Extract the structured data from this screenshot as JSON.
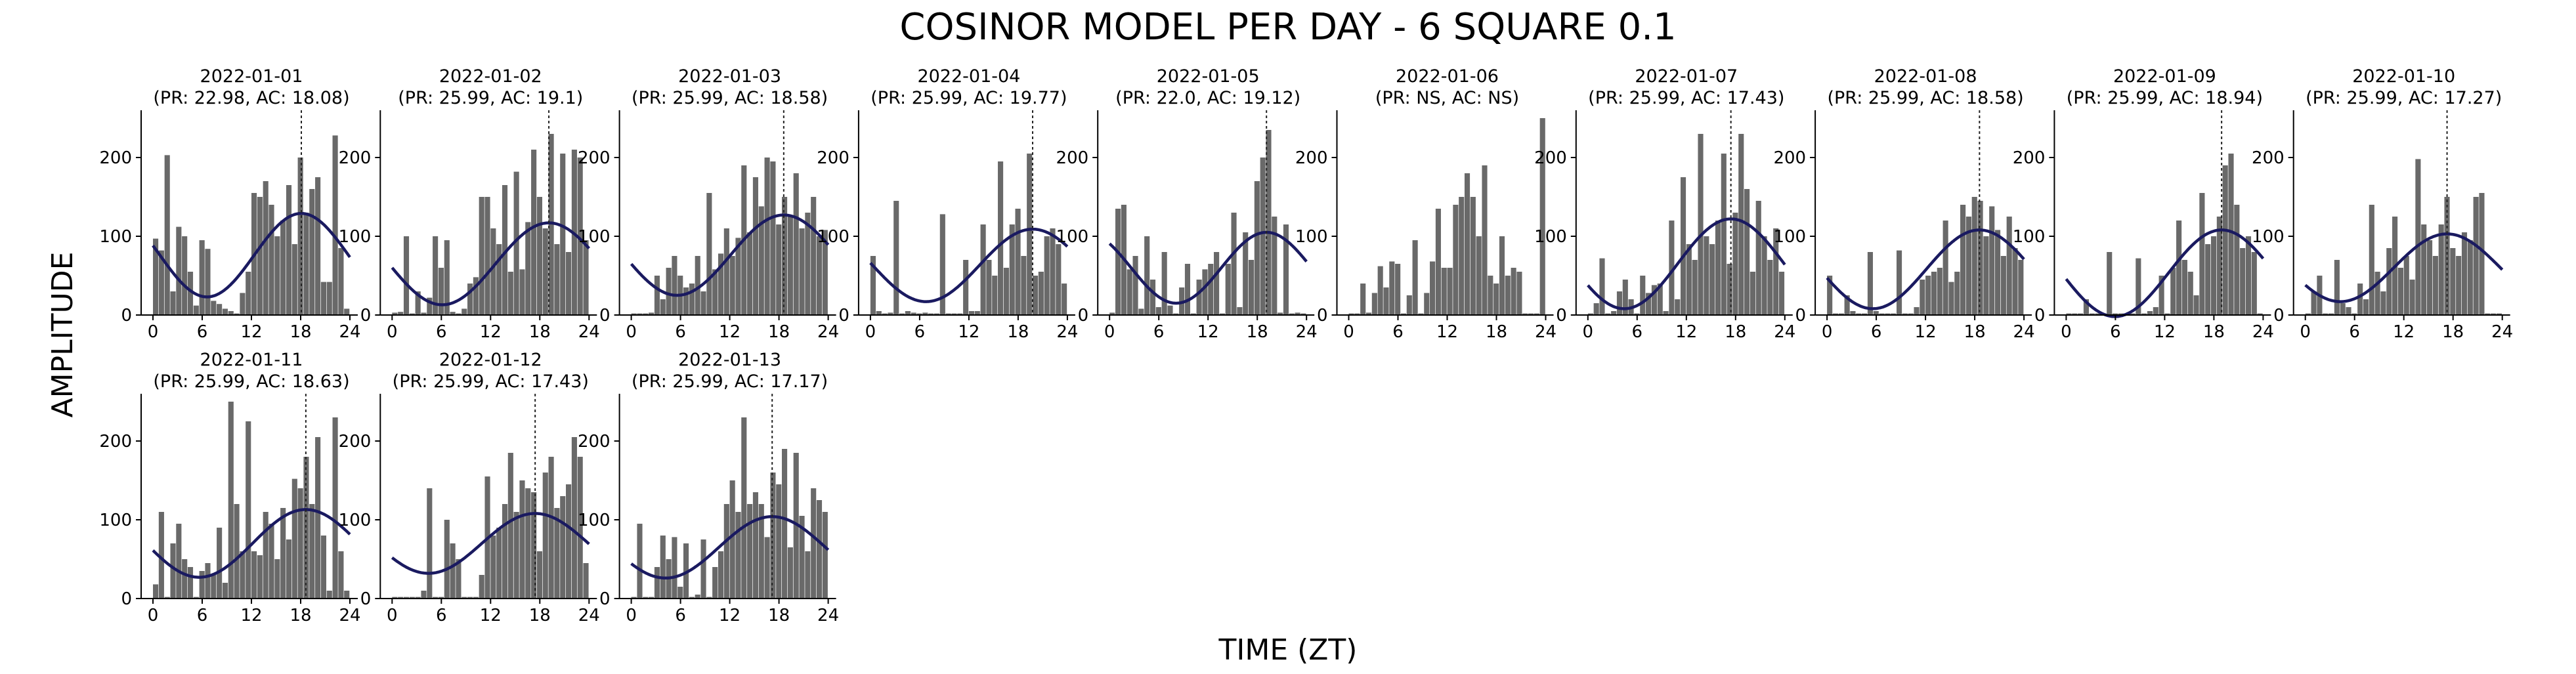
{
  "chart_data": {
    "type": "bar",
    "title": "COSINOR MODEL PER DAY - 6 SQUARE 0.1",
    "xlabel": "TIME (ZT)",
    "ylabel": "AMPLITUDE",
    "xlim": [
      0,
      24
    ],
    "ylim": [
      0,
      260
    ],
    "xticks": [
      0,
      6,
      12,
      18,
      24
    ],
    "yticks": [
      0,
      100,
      200
    ],
    "grid": false,
    "panels": [
      {
        "date": "2022-01-01",
        "subtitle": "(PR: 22.98, AC: 18.08)",
        "period": 22.98,
        "acrophase": 18.08,
        "mesor": 76,
        "amplitude": 53,
        "values": [
          97,
          82,
          203,
          30,
          112,
          100,
          55,
          12,
          95,
          84,
          18,
          14,
          8,
          5,
          2,
          28,
          55,
          155,
          150,
          170,
          140,
          100,
          120,
          165,
          90,
          200,
          130,
          160,
          175,
          42,
          42,
          228,
          85,
          8
        ]
      },
      {
        "date": "2022-01-02",
        "subtitle": "(PR: 25.99, AC: 19.1)",
        "period": 25.99,
        "acrophase": 19.1,
        "mesor": 65,
        "amplitude": 52,
        "values": [
          3,
          4,
          100,
          2,
          30,
          3,
          22,
          100,
          60,
          95,
          4,
          2,
          8,
          40,
          48,
          150,
          150,
          110,
          90,
          165,
          55,
          182,
          58,
          118,
          210,
          150,
          110,
          230,
          90,
          205,
          80,
          210,
          200,
          95
        ]
      },
      {
        "date": "2022-01-03",
        "subtitle": "(PR: 25.99, AC: 18.58)",
        "period": 25.99,
        "acrophase": 18.58,
        "mesor": 76,
        "amplitude": 51,
        "values": [
          2,
          2,
          2,
          3,
          50,
          20,
          60,
          75,
          50,
          35,
          40,
          75,
          30,
          155,
          58,
          78,
          110,
          75,
          98,
          190,
          105,
          175,
          138,
          200,
          195,
          115,
          150,
          125,
          180,
          110,
          130,
          150,
          100,
          108
        ]
      },
      {
        "date": "2022-01-04",
        "subtitle": "(PR: 25.99, AC: 19.77)",
        "period": 25.99,
        "acrophase": 19.77,
        "mesor": 63,
        "amplitude": 46,
        "values": [
          75,
          5,
          2,
          3,
          145,
          2,
          5,
          3,
          2,
          3,
          2,
          2,
          128,
          2,
          2,
          2,
          70,
          5,
          5,
          115,
          70,
          50,
          195,
          60,
          115,
          135,
          75,
          205,
          50,
          55,
          100,
          110,
          90,
          40
        ]
      },
      {
        "date": "2022-01-05",
        "subtitle": "(PR: 22.0, AC: 19.12)",
        "period": 22.0,
        "acrophase": 19.12,
        "mesor": 60,
        "amplitude": 45,
        "values": [
          3,
          135,
          140,
          58,
          75,
          8,
          100,
          45,
          10,
          80,
          12,
          2,
          35,
          65,
          2,
          45,
          58,
          65,
          80,
          2,
          65,
          130,
          10,
          105,
          70,
          170,
          200,
          235,
          125,
          3,
          115,
          2,
          3,
          2
        ]
      },
      {
        "date": "2022-01-06",
        "subtitle": "(PR: NS, AC: NS)",
        "period": null,
        "acrophase": null,
        "mesor": null,
        "amplitude": null,
        "values": [
          2,
          2,
          40,
          3,
          28,
          62,
          35,
          68,
          65,
          2,
          25,
          95,
          2,
          28,
          68,
          135,
          60,
          60,
          140,
          150,
          180,
          150,
          100,
          190,
          50,
          40,
          100,
          50,
          60,
          55,
          2,
          2,
          2,
          250
        ]
      },
      {
        "date": "2022-01-07",
        "subtitle": "(PR: 25.99, AC: 17.43)",
        "period": 25.99,
        "acrophase": 17.43,
        "mesor": 65,
        "amplitude": 57,
        "values": [
          2,
          15,
          72,
          2,
          5,
          30,
          45,
          20,
          2,
          50,
          28,
          38,
          40,
          5,
          120,
          20,
          175,
          90,
          70,
          230,
          100,
          90,
          120,
          205,
          65,
          130,
          230,
          160,
          55,
          145,
          100,
          70,
          110,
          55
        ]
      },
      {
        "date": "2022-01-08",
        "subtitle": "(PR: 25.99, AC: 18.58)",
        "period": 25.99,
        "acrophase": 18.58,
        "mesor": 58,
        "amplitude": 50,
        "values": [
          50,
          2,
          2,
          25,
          5,
          2,
          2,
          80,
          5,
          2,
          2,
          2,
          82,
          2,
          2,
          10,
          45,
          50,
          55,
          60,
          120,
          42,
          55,
          140,
          125,
          150,
          145,
          100,
          138,
          108,
          75,
          125,
          85,
          70
        ]
      },
      {
        "date": "2022-01-09",
        "subtitle": "(PR: 25.99, AC: 18.94)",
        "period": 25.99,
        "acrophase": 18.94,
        "mesor": 53,
        "amplitude": 55,
        "values": [
          2,
          2,
          2,
          20,
          2,
          2,
          2,
          80,
          2,
          2,
          2,
          2,
          72,
          2,
          5,
          10,
          50,
          2,
          60,
          120,
          70,
          55,
          25,
          155,
          90,
          100,
          125,
          190,
          205,
          140,
          85,
          100,
          80,
          2
        ]
      },
      {
        "date": "2022-01-10",
        "subtitle": "(PR: 25.99, AC: 17.27)",
        "period": 25.99,
        "acrophase": 17.27,
        "mesor": 60,
        "amplitude": 43,
        "values": [
          2,
          30,
          50,
          2,
          2,
          70,
          15,
          10,
          2,
          40,
          20,
          140,
          55,
          30,
          85,
          125,
          60,
          75,
          45,
          198,
          115,
          95,
          75,
          115,
          150,
          85,
          75,
          105,
          95,
          150,
          155,
          2,
          2,
          2
        ]
      },
      {
        "date": "2022-01-11",
        "subtitle": "(PR: 25.99, AC: 18.63)",
        "period": 25.99,
        "acrophase": 18.63,
        "mesor": 70,
        "amplitude": 43,
        "values": [
          18,
          110,
          2,
          70,
          95,
          50,
          40,
          2,
          35,
          45,
          30,
          90,
          20,
          250,
          120,
          60,
          225,
          60,
          55,
          110,
          95,
          50,
          115,
          75,
          152,
          140,
          180,
          120,
          205,
          80,
          10,
          230,
          60,
          10
        ]
      },
      {
        "date": "2022-01-12",
        "subtitle": "(PR: 25.99, AC: 17.43)",
        "period": 25.99,
        "acrophase": 17.43,
        "mesor": 70,
        "amplitude": 38,
        "values": [
          2,
          2,
          2,
          2,
          2,
          10,
          140,
          2,
          2,
          100,
          70,
          50,
          2,
          2,
          2,
          30,
          155,
          80,
          90,
          120,
          185,
          110,
          150,
          140,
          135,
          60,
          160,
          180,
          115,
          130,
          145,
          205,
          180,
          45
        ]
      },
      {
        "date": "2022-01-13",
        "subtitle": "(PR: 25.99, AC: 17.17)",
        "period": 25.99,
        "acrophase": 17.17,
        "mesor": 65,
        "amplitude": 39,
        "values": [
          2,
          95,
          2,
          2,
          40,
          80,
          50,
          78,
          15,
          70,
          2,
          5,
          75,
          2,
          40,
          60,
          120,
          150,
          110,
          230,
          120,
          135,
          120,
          78,
          160,
          145,
          190,
          65,
          185,
          105,
          60,
          140,
          125,
          110
        ]
      }
    ]
  }
}
